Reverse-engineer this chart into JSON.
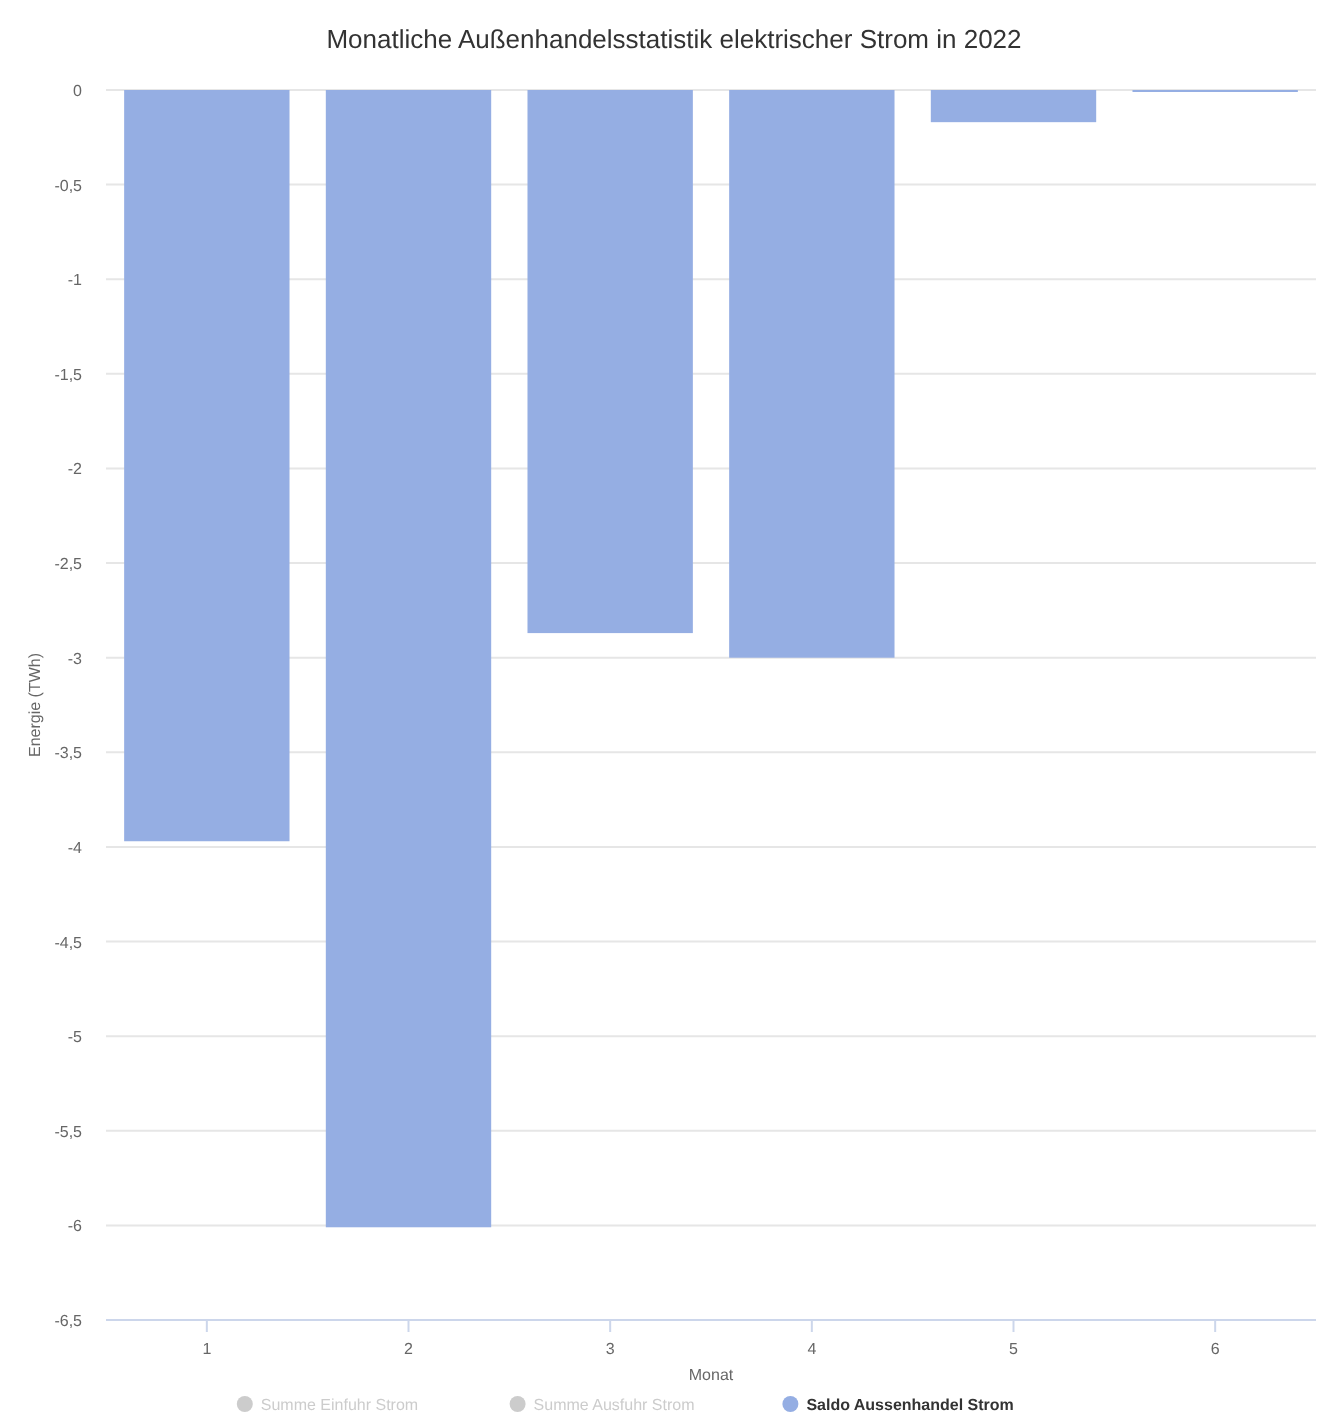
{
  "chart_data": {
    "type": "bar",
    "title": "Monatliche Außenhandelsstatistik elektrischer Strom in 2022",
    "xlabel": "Monat",
    "ylabel": "Energie (TWh)",
    "categories": [
      "1",
      "2",
      "3",
      "4",
      "5",
      "6"
    ],
    "series": [
      {
        "name": "Summe Einfuhr Strom",
        "color": "#cccccc",
        "values": [
          null,
          null,
          null,
          null,
          null,
          null
        ]
      },
      {
        "name": "Summe Ausfuhr Strom",
        "color": "#cccccc",
        "values": [
          null,
          null,
          null,
          null,
          null,
          null
        ]
      },
      {
        "name": "Saldo Aussenhandel Strom",
        "color": "#95aee3",
        "values": [
          -3.97,
          -6.01,
          -2.87,
          -3.0,
          -0.17,
          -0.01
        ]
      }
    ],
    "ylim": [
      -6.5,
      0
    ],
    "yticks": [
      0,
      {
        "value": -0.5,
        "label": "-0,5"
      },
      -1,
      {
        "value": -1.5,
        "label": "-1,5"
      },
      -2,
      {
        "value": -2.5,
        "label": "-2,5"
      },
      -3,
      {
        "value": -3.5,
        "label": "-3,5"
      },
      -4,
      {
        "value": -4.5,
        "label": "-4,5"
      },
      -5,
      {
        "value": -5.5,
        "label": "-5,5"
      },
      -6,
      {
        "value": -6.5,
        "label": "-6,5"
      }
    ],
    "grid": "y",
    "legend": "bottom"
  }
}
